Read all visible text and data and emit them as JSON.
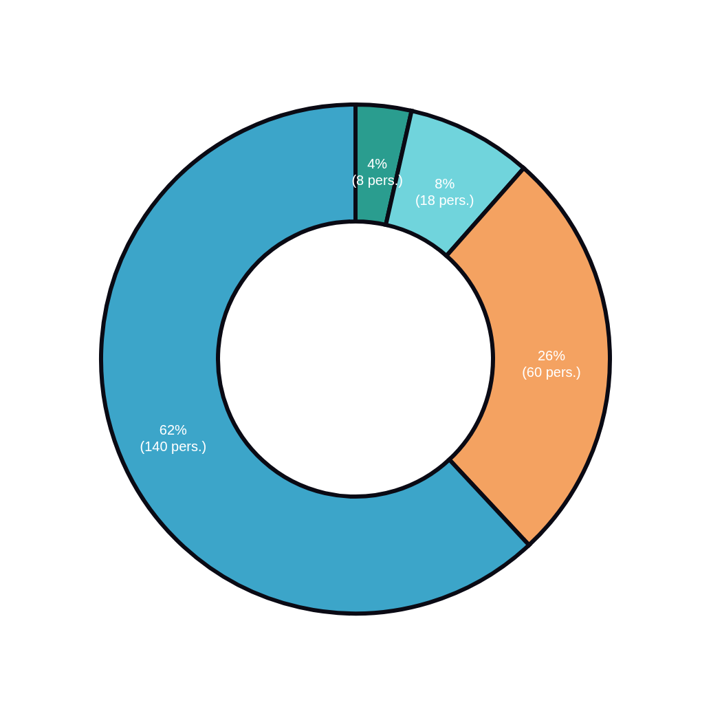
{
  "chart_data": {
    "type": "donut",
    "categories": [
      null,
      null,
      null,
      null
    ],
    "values": [
      8,
      18,
      60,
      140
    ],
    "colors": [
      "#2a9d8f",
      "#70d4dc",
      "#f4a261",
      "#3ca5c9"
    ],
    "value_labels": [
      "4%\n(8 pers.)",
      "8%\n(18 pers.)",
      "26%\n(60 pers.)",
      "62%\n(140 pers.)"
    ],
    "legend": false
  }
}
